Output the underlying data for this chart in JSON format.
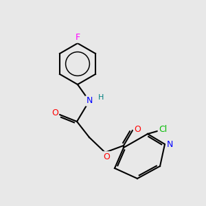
{
  "background_color": "#e8e8e8",
  "bond_color": "#000000",
  "bond_width": 1.5,
  "atom_colors": {
    "F": "#ff00ff",
    "N": "#0000ff",
    "O": "#ff0000",
    "Cl": "#00bb00",
    "H_amide": "#008080"
  },
  "font_size": 9,
  "font_size_small": 8
}
